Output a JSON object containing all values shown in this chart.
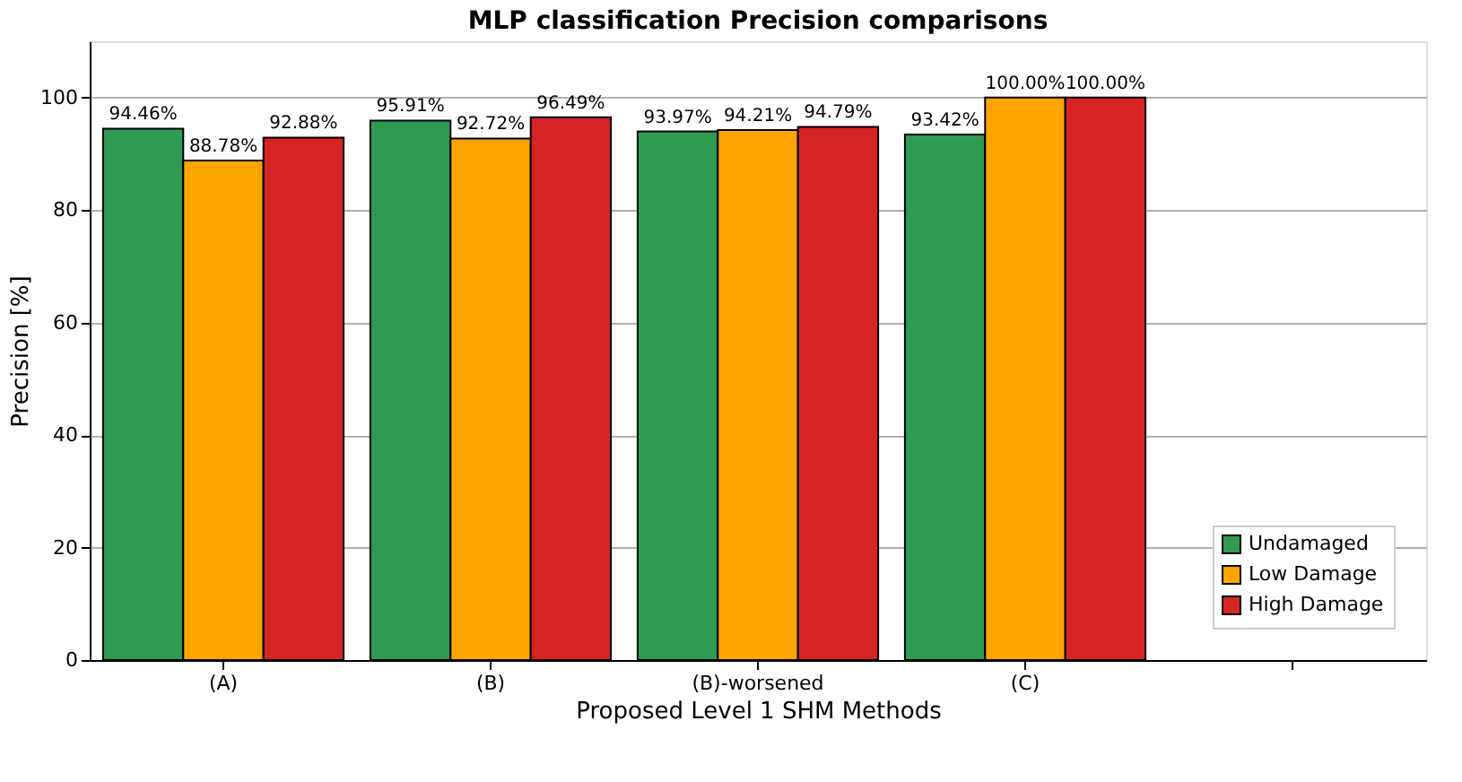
{
  "chart_data": {
    "type": "bar",
    "title": "MLP classification Precision comparisons",
    "xlabel": "Proposed Level 1 SHM Methods",
    "ylabel": "Precision [%]",
    "categories": [
      "(A)",
      "(B)",
      "(B)-worsened",
      "(C)",
      null
    ],
    "series": [
      {
        "name": "Undamaged",
        "color": "#2f9a51",
        "values": [
          94.46,
          95.91,
          93.97,
          93.42,
          null
        ],
        "value_labels": [
          "94.46%",
          "95.91%",
          "93.97%",
          "93.42%",
          null
        ]
      },
      {
        "name": "Low Damage",
        "color": "#ffa500",
        "values": [
          88.78,
          92.72,
          94.21,
          100.0,
          null
        ],
        "value_labels": [
          "88.78%",
          "92.72%",
          "94.21%",
          "100.00%",
          null
        ]
      },
      {
        "name": "High Damage",
        "color": "#d62424",
        "values": [
          92.88,
          96.49,
          94.79,
          100.0,
          null
        ],
        "value_labels": [
          "92.88%",
          "96.49%",
          "94.79%",
          "100.00%",
          null
        ]
      }
    ],
    "ylim": [
      0,
      110
    ],
    "yticks": [
      0,
      20,
      40,
      60,
      80,
      100
    ],
    "grid": "y",
    "legend": "bottom right"
  }
}
